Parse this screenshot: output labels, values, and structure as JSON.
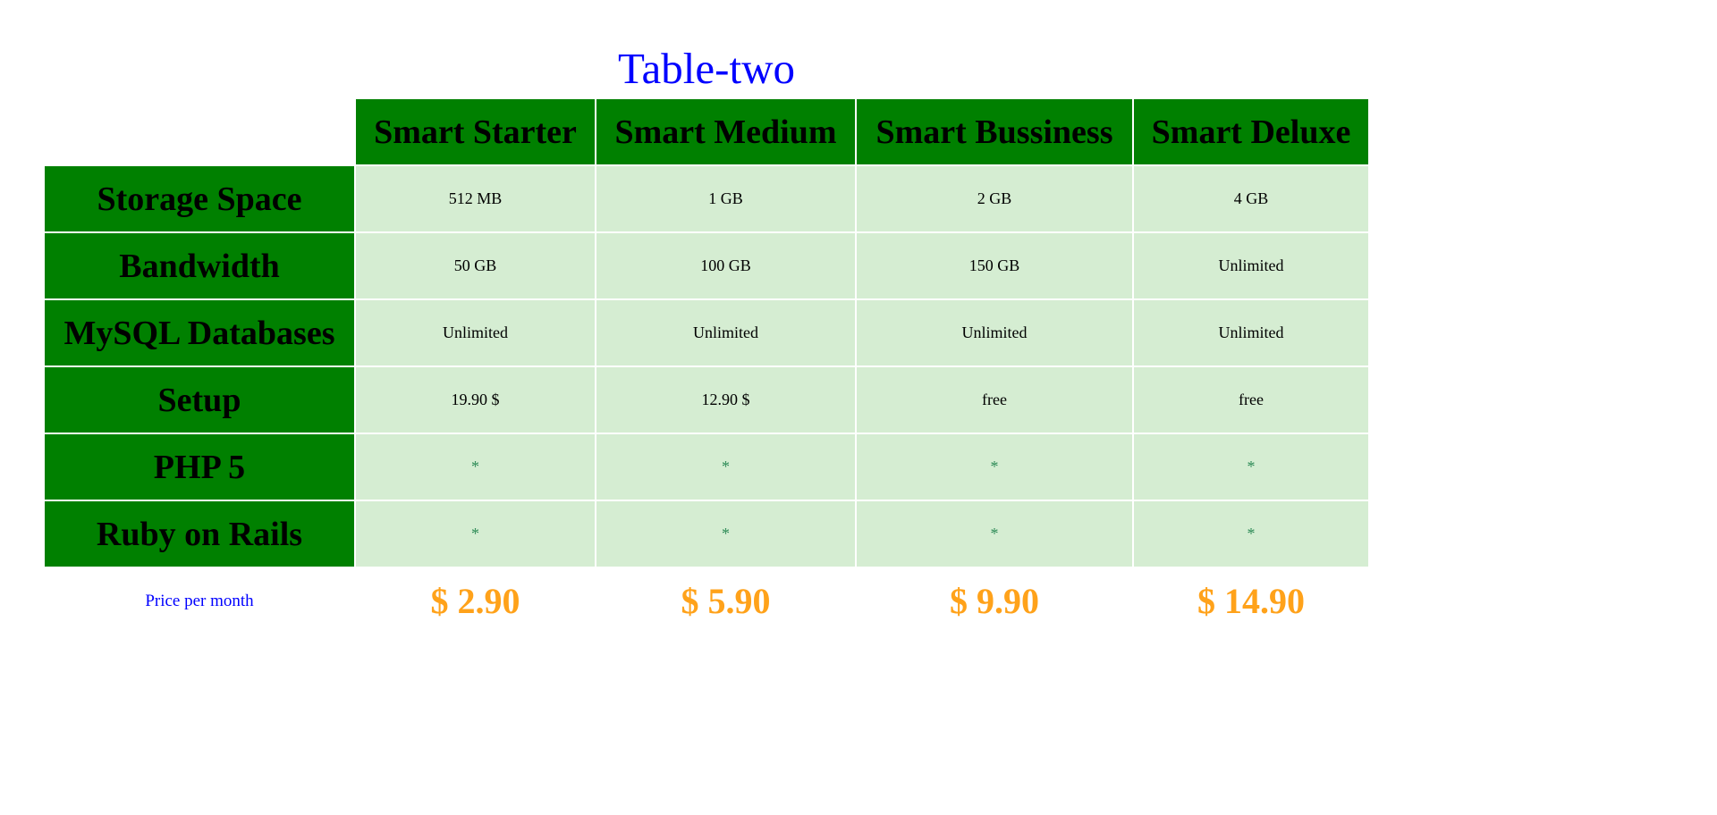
{
  "caption": "Table-two",
  "plans": [
    "Smart Starter",
    "Smart Medium",
    "Smart Bussiness",
    "Smart Deluxe"
  ],
  "rows": [
    {
      "feature": "Storage Space",
      "values": [
        "512 MB",
        "1 GB",
        "2 GB",
        "4 GB"
      ]
    },
    {
      "feature": "Bandwidth",
      "values": [
        "50 GB",
        "100 GB",
        "150 GB",
        "Unlimited"
      ]
    },
    {
      "feature": "MySQL Databases",
      "values": [
        "Unlimited",
        "Unlimited",
        "Unlimited",
        "Unlimited"
      ]
    },
    {
      "feature": "Setup",
      "values": [
        "19.90 $",
        "12.90 $",
        "free",
        "free"
      ]
    },
    {
      "feature": "PHP 5",
      "values": [
        "*",
        "*",
        "*",
        "*"
      ]
    },
    {
      "feature": "Ruby on Rails",
      "values": [
        "*",
        "*",
        "*",
        "*"
      ]
    }
  ],
  "footer": {
    "label": "Price per month",
    "prices": [
      "$ 2.90",
      "$ 5.90",
      "$ 9.90",
      "$ 14.90"
    ]
  },
  "colors": {
    "header_bg": "#008000",
    "cell_bg": "#d5edd2",
    "caption": "#0000ff",
    "price": "#ffa21a",
    "star": "#2e8b57"
  }
}
